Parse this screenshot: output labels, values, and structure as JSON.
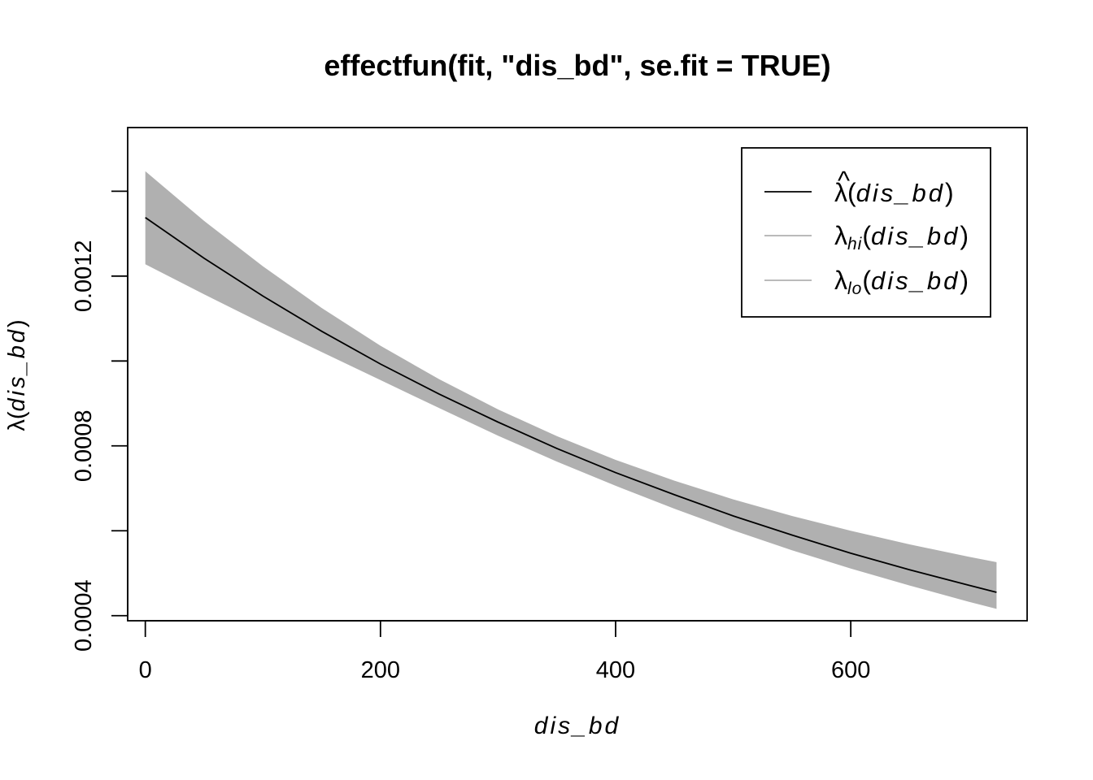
{
  "chart_data": {
    "type": "line",
    "title": "effectfun(fit, \"dis_bd\", se.fit = TRUE)",
    "xlabel": "dis_bd",
    "ylabel": "λ(dis_bd)",
    "xlim": [
      -15,
      750
    ],
    "ylim": [
      0.000388,
      0.00155
    ],
    "x_ticks": [
      0,
      200,
      400,
      600
    ],
    "x_tick_labels": [
      "0",
      "200",
      "400",
      "600"
    ],
    "y_ticks": [
      0.0004,
      0.0006,
      0.0008,
      0.001,
      0.0012,
      0.0014
    ],
    "y_tick_labels": [
      "0.0004",
      "",
      "0.0008",
      "",
      "0.0012",
      ""
    ],
    "grid": false,
    "legend_position": "top-right",
    "x": [
      0,
      50,
      100,
      150,
      200,
      250,
      300,
      350,
      400,
      450,
      500,
      550,
      600,
      650,
      700,
      724
    ],
    "series": [
      {
        "name": "λ̂(dis_bd)",
        "color": "#000000",
        "values": [
          0.001338,
          0.001242,
          0.001153,
          0.00107,
          0.000993,
          0.000922,
          0.000856,
          0.000794,
          0.000737,
          0.000685,
          0.000635,
          0.00059,
          0.000547,
          0.000508,
          0.000472,
          0.000455
        ]
      },
      {
        "name": "λhi(dis_bd)",
        "color": "#b0b0b0",
        "values": [
          0.001447,
          0.00133,
          0.001223,
          0.001125,
          0.001036,
          0.000957,
          0.000886,
          0.000823,
          0.000767,
          0.000718,
          0.000674,
          0.000635,
          0.0006,
          0.000568,
          0.000539,
          0.000526
        ]
      },
      {
        "name": "λlo(dis_bd)",
        "color": "#b0b0b0",
        "values": [
          0.001228,
          0.001157,
          0.001088,
          0.001021,
          0.000955,
          0.000889,
          0.000824,
          0.000763,
          0.000706,
          0.000652,
          0.000601,
          0.000554,
          0.000511,
          0.000471,
          0.000433,
          0.000416
        ]
      }
    ],
    "legend": {
      "hat": "^",
      "lambda": "λ",
      "open": "(",
      "var": "dis_bd",
      "close": ")",
      "sub_hi": "hi",
      "sub_lo": "lo"
    }
  }
}
